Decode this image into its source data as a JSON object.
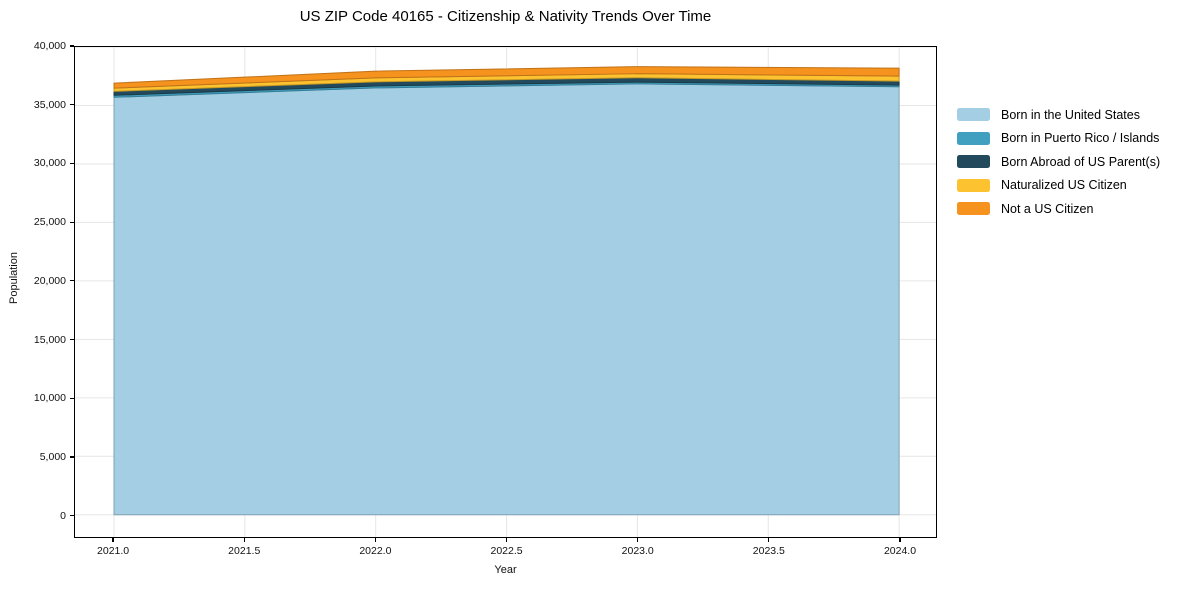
{
  "chart_data": {
    "type": "area",
    "stacked": true,
    "title": "US ZIP Code 40165 - Citizenship & Nativity Trends Over Time",
    "xlabel": "Year",
    "ylabel": "Population",
    "x": [
      2021,
      2022,
      2023,
      2024
    ],
    "series": [
      {
        "name": "Born in the United States",
        "color": "#A4CEE4",
        "values": [
          35700,
          36500,
          36850,
          36600
        ]
      },
      {
        "name": "Born in Puerto Rico / Islands",
        "color": "#41A0C0",
        "values": [
          170,
          170,
          150,
          140
        ]
      },
      {
        "name": "Born Abroad of US Parent(s)",
        "color": "#234A5C",
        "values": [
          340,
          350,
          370,
          340
        ]
      },
      {
        "name": "Naturalized US Citizen",
        "color": "#FCC22F",
        "values": [
          270,
          340,
          350,
          430
        ]
      },
      {
        "name": "Not a US Citizen",
        "color": "#F6921E",
        "values": [
          430,
          580,
          600,
          680
        ]
      }
    ],
    "totals": [
      36910,
      37940,
      38320,
      38190
    ],
    "xlim": [
      2020.851,
      2024.141
    ],
    "ylim": [
      -1900,
      40000
    ],
    "x_ticks": [
      {
        "v": 2021.0,
        "label": "2021.0"
      },
      {
        "v": 2021.5,
        "label": "2021.5"
      },
      {
        "v": 2022.0,
        "label": "2022.0"
      },
      {
        "v": 2022.5,
        "label": "2022.5"
      },
      {
        "v": 2023.0,
        "label": "2023.0"
      },
      {
        "v": 2023.5,
        "label": "2023.5"
      },
      {
        "v": 2024.0,
        "label": "2024.0"
      }
    ],
    "y_ticks": [
      {
        "v": 0,
        "label": "0"
      },
      {
        "v": 5000,
        "label": "5,000"
      },
      {
        "v": 10000,
        "label": "10,000"
      },
      {
        "v": 15000,
        "label": "15,000"
      },
      {
        "v": 20000,
        "label": "20,000"
      },
      {
        "v": 25000,
        "label": "25,000"
      },
      {
        "v": 30000,
        "label": "30,000"
      },
      {
        "v": 35000,
        "label": "35,000"
      },
      {
        "v": 40000,
        "label": "40,000"
      }
    ],
    "grid": true,
    "grid_color": "#e6e6e6",
    "legend_position": "right-outside"
  }
}
